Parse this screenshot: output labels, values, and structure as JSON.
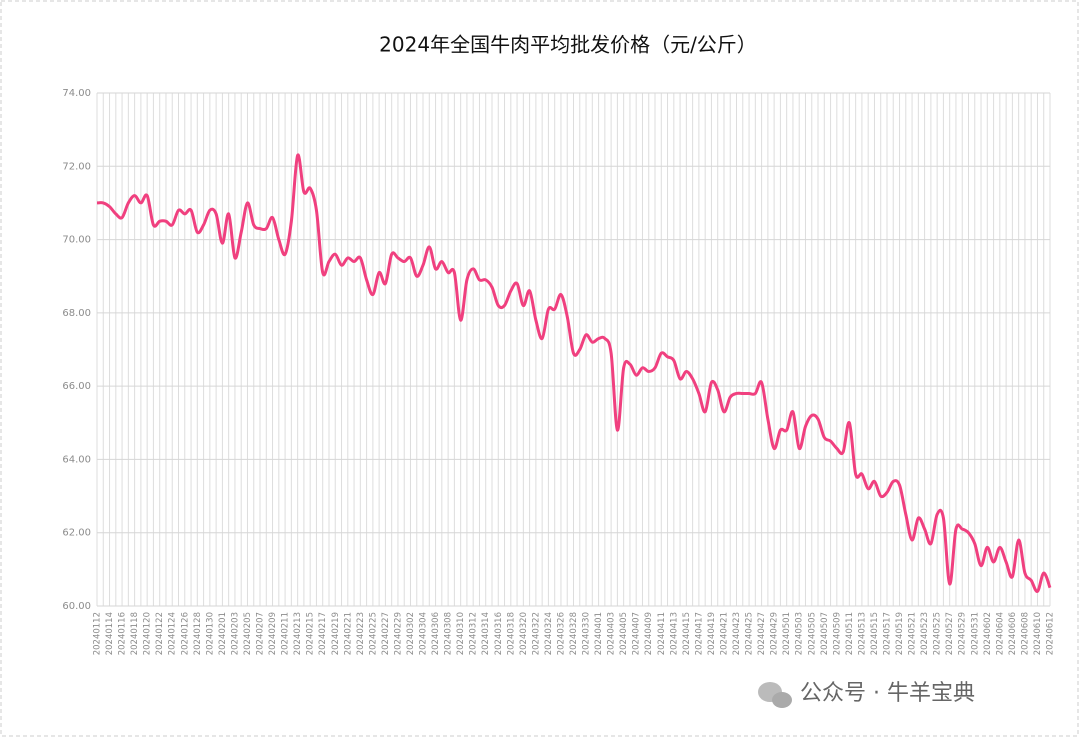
{
  "chart_data": {
    "type": "line",
    "title": "2024年全国牛肉平均批发价格（元/公斤）",
    "watermark": "公众号 · 牛羊宝典",
    "categories": [
      "20240112",
      null,
      "20240114",
      null,
      "20240116",
      null,
      "20240118",
      null,
      "20240120",
      null,
      "20240122",
      null,
      "20240124",
      null,
      "20240126",
      null,
      "20240128",
      null,
      "20240130",
      null,
      "20240201",
      null,
      "20240203",
      null,
      "20240205",
      null,
      "20240207",
      null,
      "20240209",
      null,
      "20240211",
      null,
      "20240213",
      null,
      "20240215",
      null,
      "20240217",
      null,
      "20240219",
      null,
      "20240221",
      null,
      "20240223",
      null,
      "20240225",
      null,
      "20240227",
      null,
      "20240229",
      null,
      "20240302",
      null,
      "20240304",
      null,
      "20240306",
      null,
      "20240308",
      null,
      "20240310",
      null,
      "20240312",
      null,
      "20240314",
      null,
      "20240316",
      null,
      "20240318",
      null,
      "20240320",
      null,
      "20240322",
      null,
      "20240324",
      null,
      "20240326",
      null,
      "20240328",
      null,
      "20240330",
      null,
      "20240401",
      null,
      "20240403",
      null,
      "20240405",
      null,
      "20240407",
      null,
      "20240409",
      null,
      "20240411",
      null,
      "20240413",
      null,
      "20240415",
      null,
      "20240417",
      null,
      "20240419",
      null,
      "20240421",
      null,
      "20240423",
      null,
      "20240425",
      null,
      "20240427",
      null,
      "20240429",
      null,
      "20240501",
      null,
      "20240503",
      null,
      "20240505",
      null,
      "20240507",
      null,
      "20240509",
      null,
      "20240511",
      null,
      "20240513",
      null,
      "20240515",
      null,
      "20240517",
      null,
      "20240519",
      null,
      "20240521",
      null,
      "20240523",
      null,
      "20240525",
      null,
      "20240527",
      null,
      "20240529",
      null,
      "20240531",
      null,
      "20240602",
      null,
      "20240604",
      null,
      "20240606",
      null,
      "20240608",
      null,
      "20240610",
      null,
      "20240612"
    ],
    "series": [
      {
        "color": "#f0407f",
        "values": [
          71.0,
          71.0,
          70.9,
          70.7,
          70.6,
          71.0,
          71.2,
          71.0,
          71.2,
          70.4,
          70.5,
          70.5,
          70.4,
          70.8,
          70.7,
          70.8,
          70.2,
          70.4,
          70.8,
          70.7,
          69.9,
          70.7,
          69.5,
          70.2,
          71.0,
          70.4,
          70.3,
          70.3,
          70.6,
          70.0,
          69.6,
          70.5,
          72.3,
          71.3,
          71.4,
          70.8,
          69.1,
          69.4,
          69.6,
          69.3,
          69.5,
          69.4,
          69.5,
          68.9,
          68.5,
          69.1,
          68.8,
          69.6,
          69.5,
          69.4,
          69.5,
          69.0,
          69.3,
          69.8,
          69.2,
          69.4,
          69.1,
          69.1,
          67.8,
          68.9,
          69.2,
          68.9,
          68.9,
          68.7,
          68.2,
          68.2,
          68.6,
          68.8,
          68.2,
          68.6,
          67.8,
          67.3,
          68.1,
          68.1,
          68.5,
          67.9,
          66.9,
          67.0,
          67.4,
          67.2,
          67.3,
          67.3,
          66.9,
          64.8,
          66.5,
          66.6,
          66.3,
          66.5,
          66.4,
          66.5,
          66.9,
          66.8,
          66.7,
          66.2,
          66.4,
          66.2,
          65.8,
          65.3,
          66.1,
          65.9,
          65.3,
          65.7,
          65.8,
          65.8,
          65.8,
          65.8,
          66.1,
          65.1,
          64.3,
          64.8,
          64.8,
          65.3,
          64.3,
          64.9,
          65.2,
          65.1,
          64.6,
          64.5,
          64.3,
          64.2,
          65.0,
          63.6,
          63.6,
          63.2,
          63.4,
          63.0,
          63.1,
          63.4,
          63.3,
          62.5,
          61.8,
          62.4,
          62.1,
          61.7,
          62.5,
          62.4,
          60.6,
          62.1,
          62.1,
          62.0,
          61.7,
          61.1,
          61.6,
          61.2,
          61.6,
          61.2,
          60.8,
          61.8,
          60.9,
          60.7,
          60.4,
          60.9,
          60.5
        ]
      }
    ],
    "ylim": [
      60,
      74
    ],
    "yticks": [
      {
        "value": 60,
        "label": "60.00"
      },
      {
        "value": 62,
        "label": "62.00"
      },
      {
        "value": 64,
        "label": "64.00"
      },
      {
        "value": 66,
        "label": "66.00"
      },
      {
        "value": 68,
        "label": "68.00"
      },
      {
        "value": 70,
        "label": "70.00"
      },
      {
        "value": 72,
        "label": "72.00"
      },
      {
        "value": 74,
        "label": "74.00"
      }
    ],
    "grid": true
  }
}
